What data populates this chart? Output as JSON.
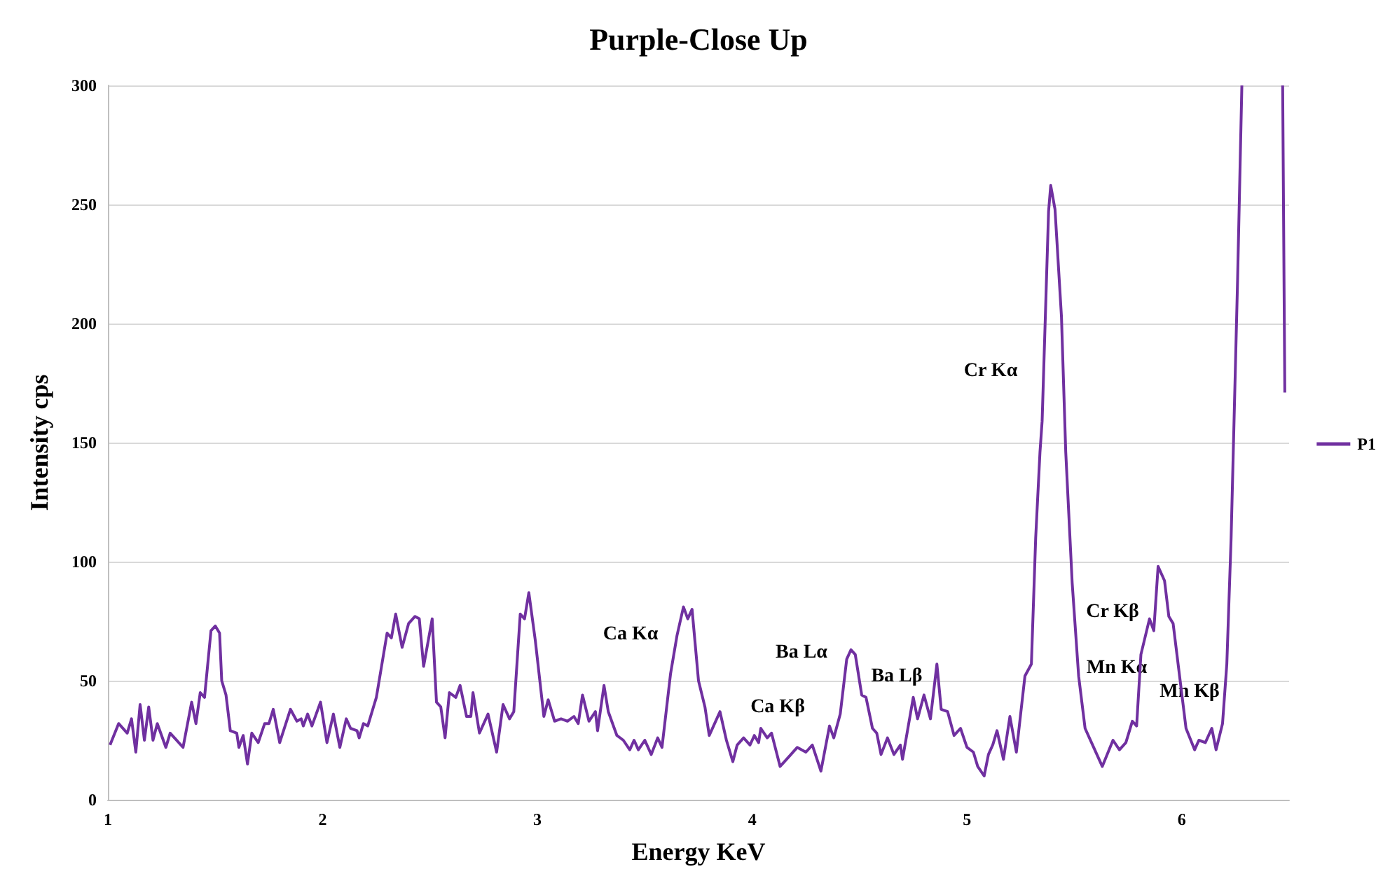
{
  "chart_data": {
    "type": "line",
    "title": "Purple-Close Up",
    "xlabel": "Energy KeV",
    "ylabel": "Intensity cps",
    "x": [
      1.01,
      1.05,
      1.09,
      1.11,
      1.13,
      1.15,
      1.17,
      1.19,
      1.21,
      1.23,
      1.27,
      1.29,
      1.35,
      1.39,
      1.41,
      1.43,
      1.45,
      1.48,
      1.5,
      1.52,
      1.53,
      1.55,
      1.57,
      1.6,
      1.61,
      1.63,
      1.65,
      1.67,
      1.7,
      1.73,
      1.75,
      1.77,
      1.8,
      1.85,
      1.88,
      1.9,
      1.91,
      1.93,
      1.95,
      1.99,
      2.02,
      2.05,
      2.08,
      2.11,
      2.13,
      2.16,
      2.17,
      2.19,
      2.21,
      2.24,
      2.25,
      2.3,
      2.32,
      2.34,
      2.37,
      2.4,
      2.43,
      2.45,
      2.47,
      2.51,
      2.53,
      2.55,
      2.57,
      2.59,
      2.62,
      2.64,
      2.67,
      2.69,
      2.7,
      2.73,
      2.77,
      2.81,
      2.84,
      2.87,
      2.89,
      2.92,
      2.94,
      2.96,
      2.99,
      3.03,
      3.05,
      3.08,
      3.11,
      3.14,
      3.17,
      3.19,
      3.21,
      3.24,
      3.27,
      3.28,
      3.31,
      3.33,
      3.37,
      3.4,
      3.43,
      3.45,
      3.47,
      3.5,
      3.53,
      3.56,
      3.58,
      3.62,
      3.65,
      3.68,
      3.7,
      3.72,
      3.75,
      3.78,
      3.8,
      3.85,
      3.88,
      3.91,
      3.93,
      3.96,
      3.99,
      4.01,
      4.03,
      4.04,
      4.07,
      4.09,
      4.13,
      4.17,
      4.21,
      4.25,
      4.28,
      4.32,
      4.36,
      4.38,
      4.41,
      4.44,
      4.46,
      4.48,
      4.51,
      4.53,
      4.56,
      4.58,
      4.6,
      4.63,
      4.66,
      4.69,
      4.7,
      4.75,
      4.77,
      4.8,
      4.83,
      4.86,
      4.88,
      4.91,
      4.94,
      4.97,
      5.0,
      5.03,
      5.05,
      5.08,
      5.1,
      5.12,
      5.14,
      5.17,
      5.2,
      5.23,
      5.27,
      5.3,
      5.32,
      5.34,
      5.35,
      5.38,
      5.39,
      5.41,
      5.44,
      5.46,
      5.49,
      5.52,
      5.55,
      5.58,
      5.63,
      5.68,
      5.71,
      5.74,
      5.77,
      5.79,
      5.81,
      5.85,
      5.87,
      5.89,
      5.92,
      5.94,
      5.96,
      5.99,
      6.02,
      6.06,
      6.08,
      6.11,
      6.14,
      6.16,
      6.19,
      6.21,
      6.23,
      6.26,
      6.28,
      6.38,
      6.47,
      6.48
    ],
    "series": [
      {
        "name": "P1",
        "color": "#7030a0",
        "values": [
          23,
          32,
          28,
          34,
          20,
          40,
          25,
          39,
          25,
          32,
          22,
          28,
          22,
          41,
          32,
          45,
          43,
          71,
          73,
          70,
          50,
          44,
          29,
          28,
          22,
          27,
          15,
          28,
          24,
          32,
          32,
          38,
          24,
          38,
          33,
          34,
          31,
          36,
          31,
          41,
          24,
          36,
          22,
          34,
          30,
          29,
          26,
          32,
          31,
          40,
          43,
          70,
          68,
          78,
          64,
          74,
          77,
          76,
          56,
          76,
          41,
          39,
          26,
          45,
          43,
          48,
          35,
          35,
          45,
          28,
          36,
          20,
          40,
          34,
          37,
          78,
          76,
          87,
          67,
          35,
          42,
          33,
          34,
          33,
          35,
          32,
          44,
          33,
          37,
          29,
          48,
          37,
          27,
          25,
          21,
          25,
          21,
          25,
          19,
          26,
          22,
          53,
          69,
          81,
          76,
          80,
          50,
          39,
          27,
          37,
          25,
          16,
          23,
          26,
          23,
          27,
          24,
          30,
          26,
          28,
          14,
          18,
          22,
          20,
          23,
          12,
          31,
          26,
          36,
          59,
          63,
          61,
          44,
          43,
          30,
          28,
          19,
          26,
          19,
          23,
          17,
          43,
          34,
          44,
          34,
          57,
          38,
          37,
          27,
          30,
          22,
          20,
          14,
          10,
          19,
          23,
          29,
          17,
          35,
          20,
          52,
          57,
          110,
          146,
          159,
          247,
          258,
          248,
          203,
          146,
          91,
          52,
          30,
          24,
          14,
          25,
          21,
          24,
          33,
          31,
          61,
          76,
          71,
          98,
          92,
          77,
          74,
          52,
          30,
          21,
          25,
          24,
          30,
          21,
          32,
          57,
          110,
          218,
          300,
          null,
          300,
          171
        ]
      }
    ],
    "xlim": [
      1,
      6.5
    ],
    "xticks": [
      1,
      2,
      3,
      4,
      5,
      6
    ],
    "ylim": [
      0,
      300
    ],
    "yticks": [
      0,
      50,
      100,
      150,
      200,
      250,
      300
    ],
    "grid": "y",
    "legend": "right",
    "marker": "none",
    "line_style": "solid",
    "annotations": [
      "Ca Kα",
      "Ca Kβ",
      "Ba Lα",
      "Ba Lβ",
      "Cr Kα",
      "Cr Kβ",
      "Mn Kα",
      "Mn Kβ"
    ]
  }
}
